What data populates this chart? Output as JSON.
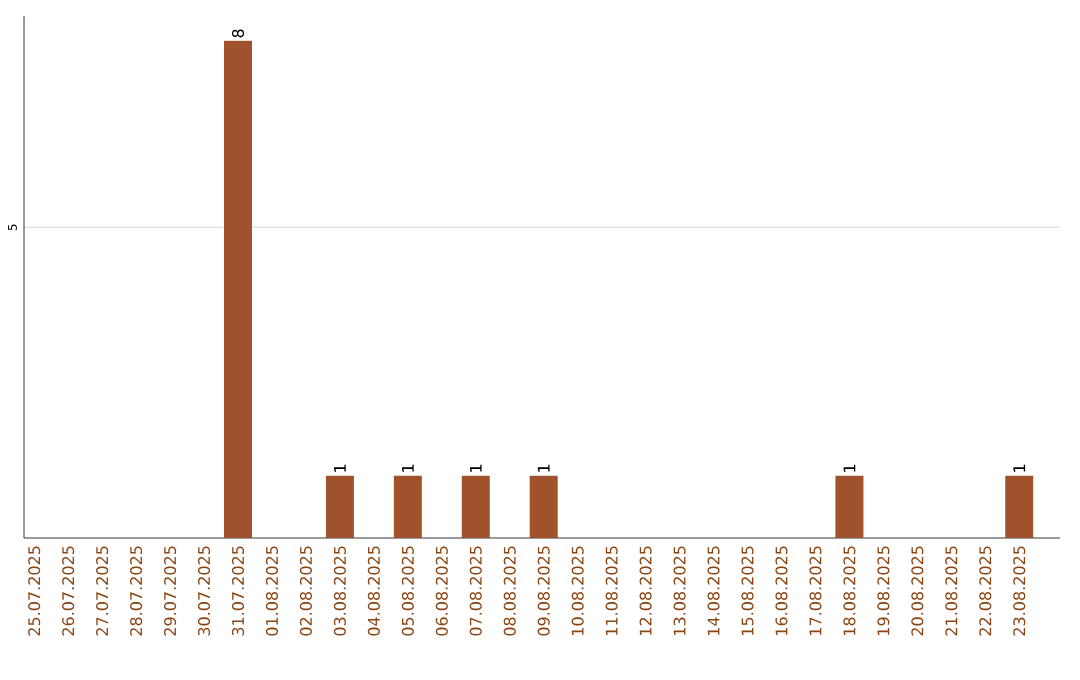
{
  "chart_data": {
    "type": "bar",
    "categories": [
      "25.07.2025",
      "26.07.2025",
      "27.07.2025",
      "28.07.2025",
      "29.07.2025",
      "30.07.2025",
      "31.07.2025",
      "01.08.2025",
      "02.08.2025",
      "03.08.2025",
      "04.08.2025",
      "05.08.2025",
      "06.08.2025",
      "07.08.2025",
      "08.08.2025",
      "09.08.2025",
      "10.08.2025",
      "11.08.2025",
      "12.08.2025",
      "13.08.2025",
      "14.08.2025",
      "15.08.2025",
      "16.08.2025",
      "17.08.2025",
      "18.08.2025",
      "19.08.2025",
      "20.08.2025",
      "21.08.2025",
      "22.08.2025",
      "23.08.2025"
    ],
    "values": [
      0,
      0,
      0,
      0,
      0,
      0,
      8,
      0,
      0,
      1,
      0,
      1,
      0,
      1,
      0,
      1,
      0,
      0,
      0,
      0,
      0,
      0,
      0,
      0,
      1,
      0,
      0,
      0,
      0,
      1
    ],
    "value_labels": [
      null,
      null,
      null,
      null,
      null,
      null,
      "8",
      null,
      null,
      "1",
      null,
      "1",
      null,
      "1",
      null,
      "1",
      null,
      null,
      null,
      null,
      null,
      null,
      null,
      null,
      "1",
      null,
      null,
      null,
      null,
      "1"
    ],
    "color": "#a0522d",
    "ylim": [
      0,
      8.4
    ],
    "yticks": [
      5
    ],
    "grid": "y"
  }
}
